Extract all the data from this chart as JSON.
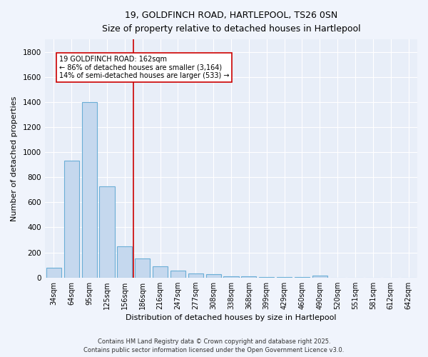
{
  "title_line1": "19, GOLDFINCH ROAD, HARTLEPOOL, TS26 0SN",
  "title_line2": "Size of property relative to detached houses in Hartlepool",
  "xlabel": "Distribution of detached houses by size in Hartlepool",
  "ylabel": "Number of detached properties",
  "categories": [
    "34sqm",
    "64sqm",
    "95sqm",
    "125sqm",
    "156sqm",
    "186sqm",
    "216sqm",
    "247sqm",
    "277sqm",
    "308sqm",
    "338sqm",
    "368sqm",
    "399sqm",
    "429sqm",
    "460sqm",
    "490sqm",
    "520sqm",
    "551sqm",
    "581sqm",
    "612sqm",
    "642sqm"
  ],
  "values": [
    80,
    930,
    1400,
    730,
    250,
    150,
    90,
    55,
    30,
    25,
    12,
    8,
    5,
    3,
    2,
    15,
    0,
    0,
    0,
    0,
    0
  ],
  "bar_color": "#c5d8ee",
  "bar_edge_color": "#6aaed6",
  "background_color": "#f0f4fc",
  "plot_bg_color": "#e8eef8",
  "grid_color": "#ffffff",
  "property_line_x": 4.5,
  "annotation_text1": "19 GOLDFINCH ROAD: 162sqm",
  "annotation_text2": "← 86% of detached houses are smaller (3,164)",
  "annotation_text3": "14% of semi-detached houses are larger (533) →",
  "red_line_color": "#cc0000",
  "annotation_box_color": "#ffffff",
  "annotation_box_edge": "#cc0000",
  "footer_line1": "Contains HM Land Registry data © Crown copyright and database right 2025.",
  "footer_line2": "Contains public sector information licensed under the Open Government Licence v3.0.",
  "ylim": [
    0,
    1900
  ],
  "yticks": [
    0,
    200,
    400,
    600,
    800,
    1000,
    1200,
    1400,
    1600,
    1800
  ]
}
